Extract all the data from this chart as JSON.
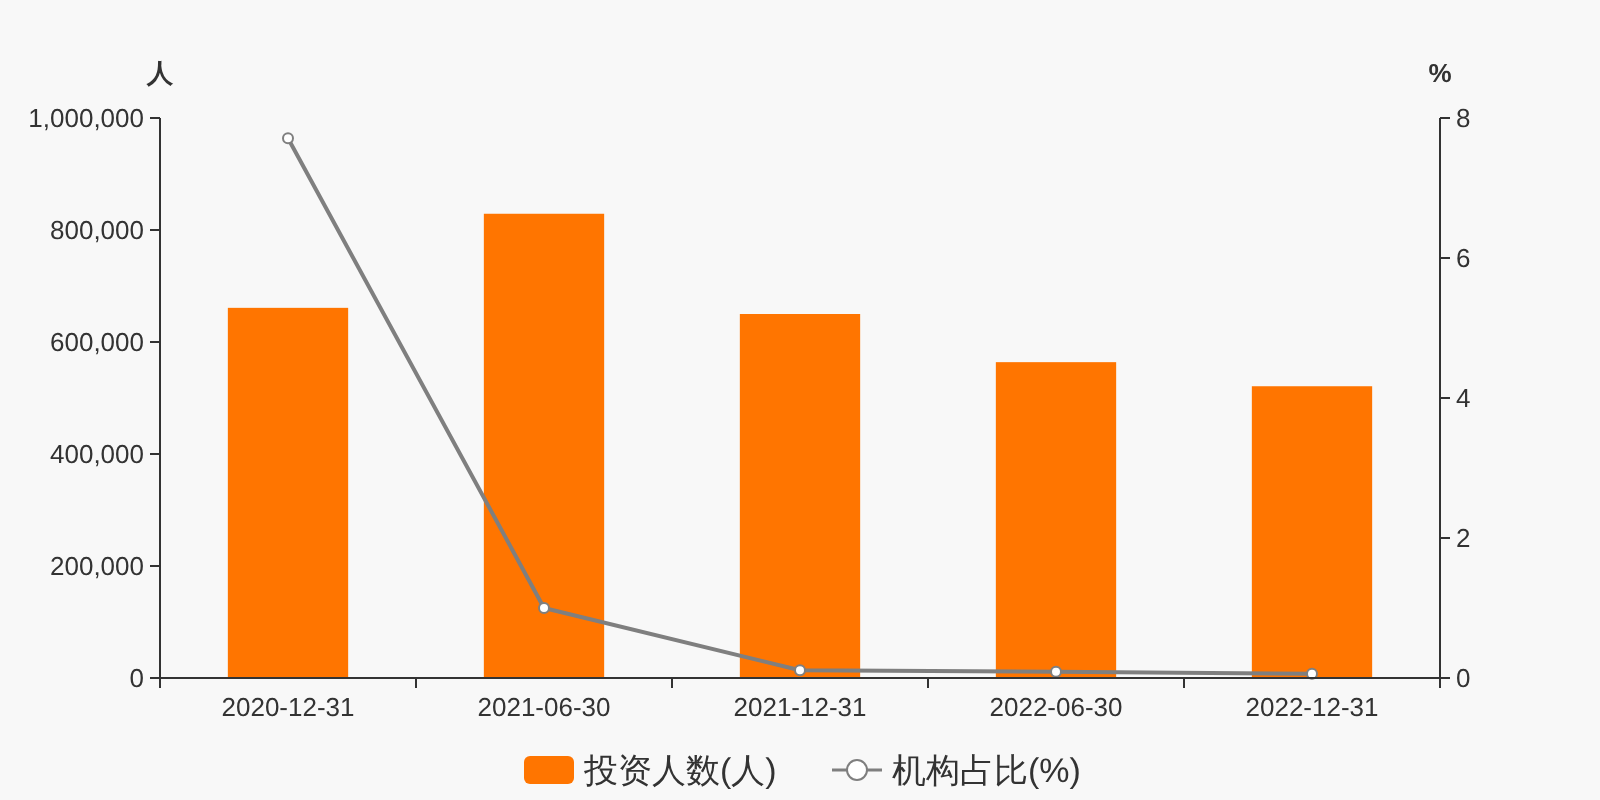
{
  "chart_data": {
    "type": "bar",
    "ylabel": "人",
    "y2label": "%",
    "categories": [
      "2020-12-31",
      "2021-06-30",
      "2021-12-31",
      "2022-06-30",
      "2022-12-31"
    ],
    "series": [
      {
        "name": "投资人数(人)",
        "color": "#ff7500",
        "values": [
          661000,
          829000,
          650000,
          564000,
          521000
        ]
      },
      {
        "name": "机构占比(%)",
        "type": "line",
        "axis": "y2",
        "color": "#7f7f7f",
        "marker": "circle",
        "values": [
          7.71,
          1.0,
          0.11,
          0.09,
          0.06
        ]
      }
    ],
    "ylim": [
      0,
      1000000
    ],
    "yticks": [
      {
        "value": 0,
        "label": "0"
      },
      {
        "value": 200000,
        "label": "200,000"
      },
      {
        "value": 400000,
        "label": "400,000"
      },
      {
        "value": 600000,
        "label": "600,000"
      },
      {
        "value": 800000,
        "label": "800,000"
      },
      {
        "value": 1000000,
        "label": "1,000,000"
      }
    ],
    "y2lim": [
      0,
      8
    ],
    "y2ticks": [
      0,
      2,
      4,
      6,
      8
    ],
    "grid": false,
    "legend": "bottom"
  }
}
